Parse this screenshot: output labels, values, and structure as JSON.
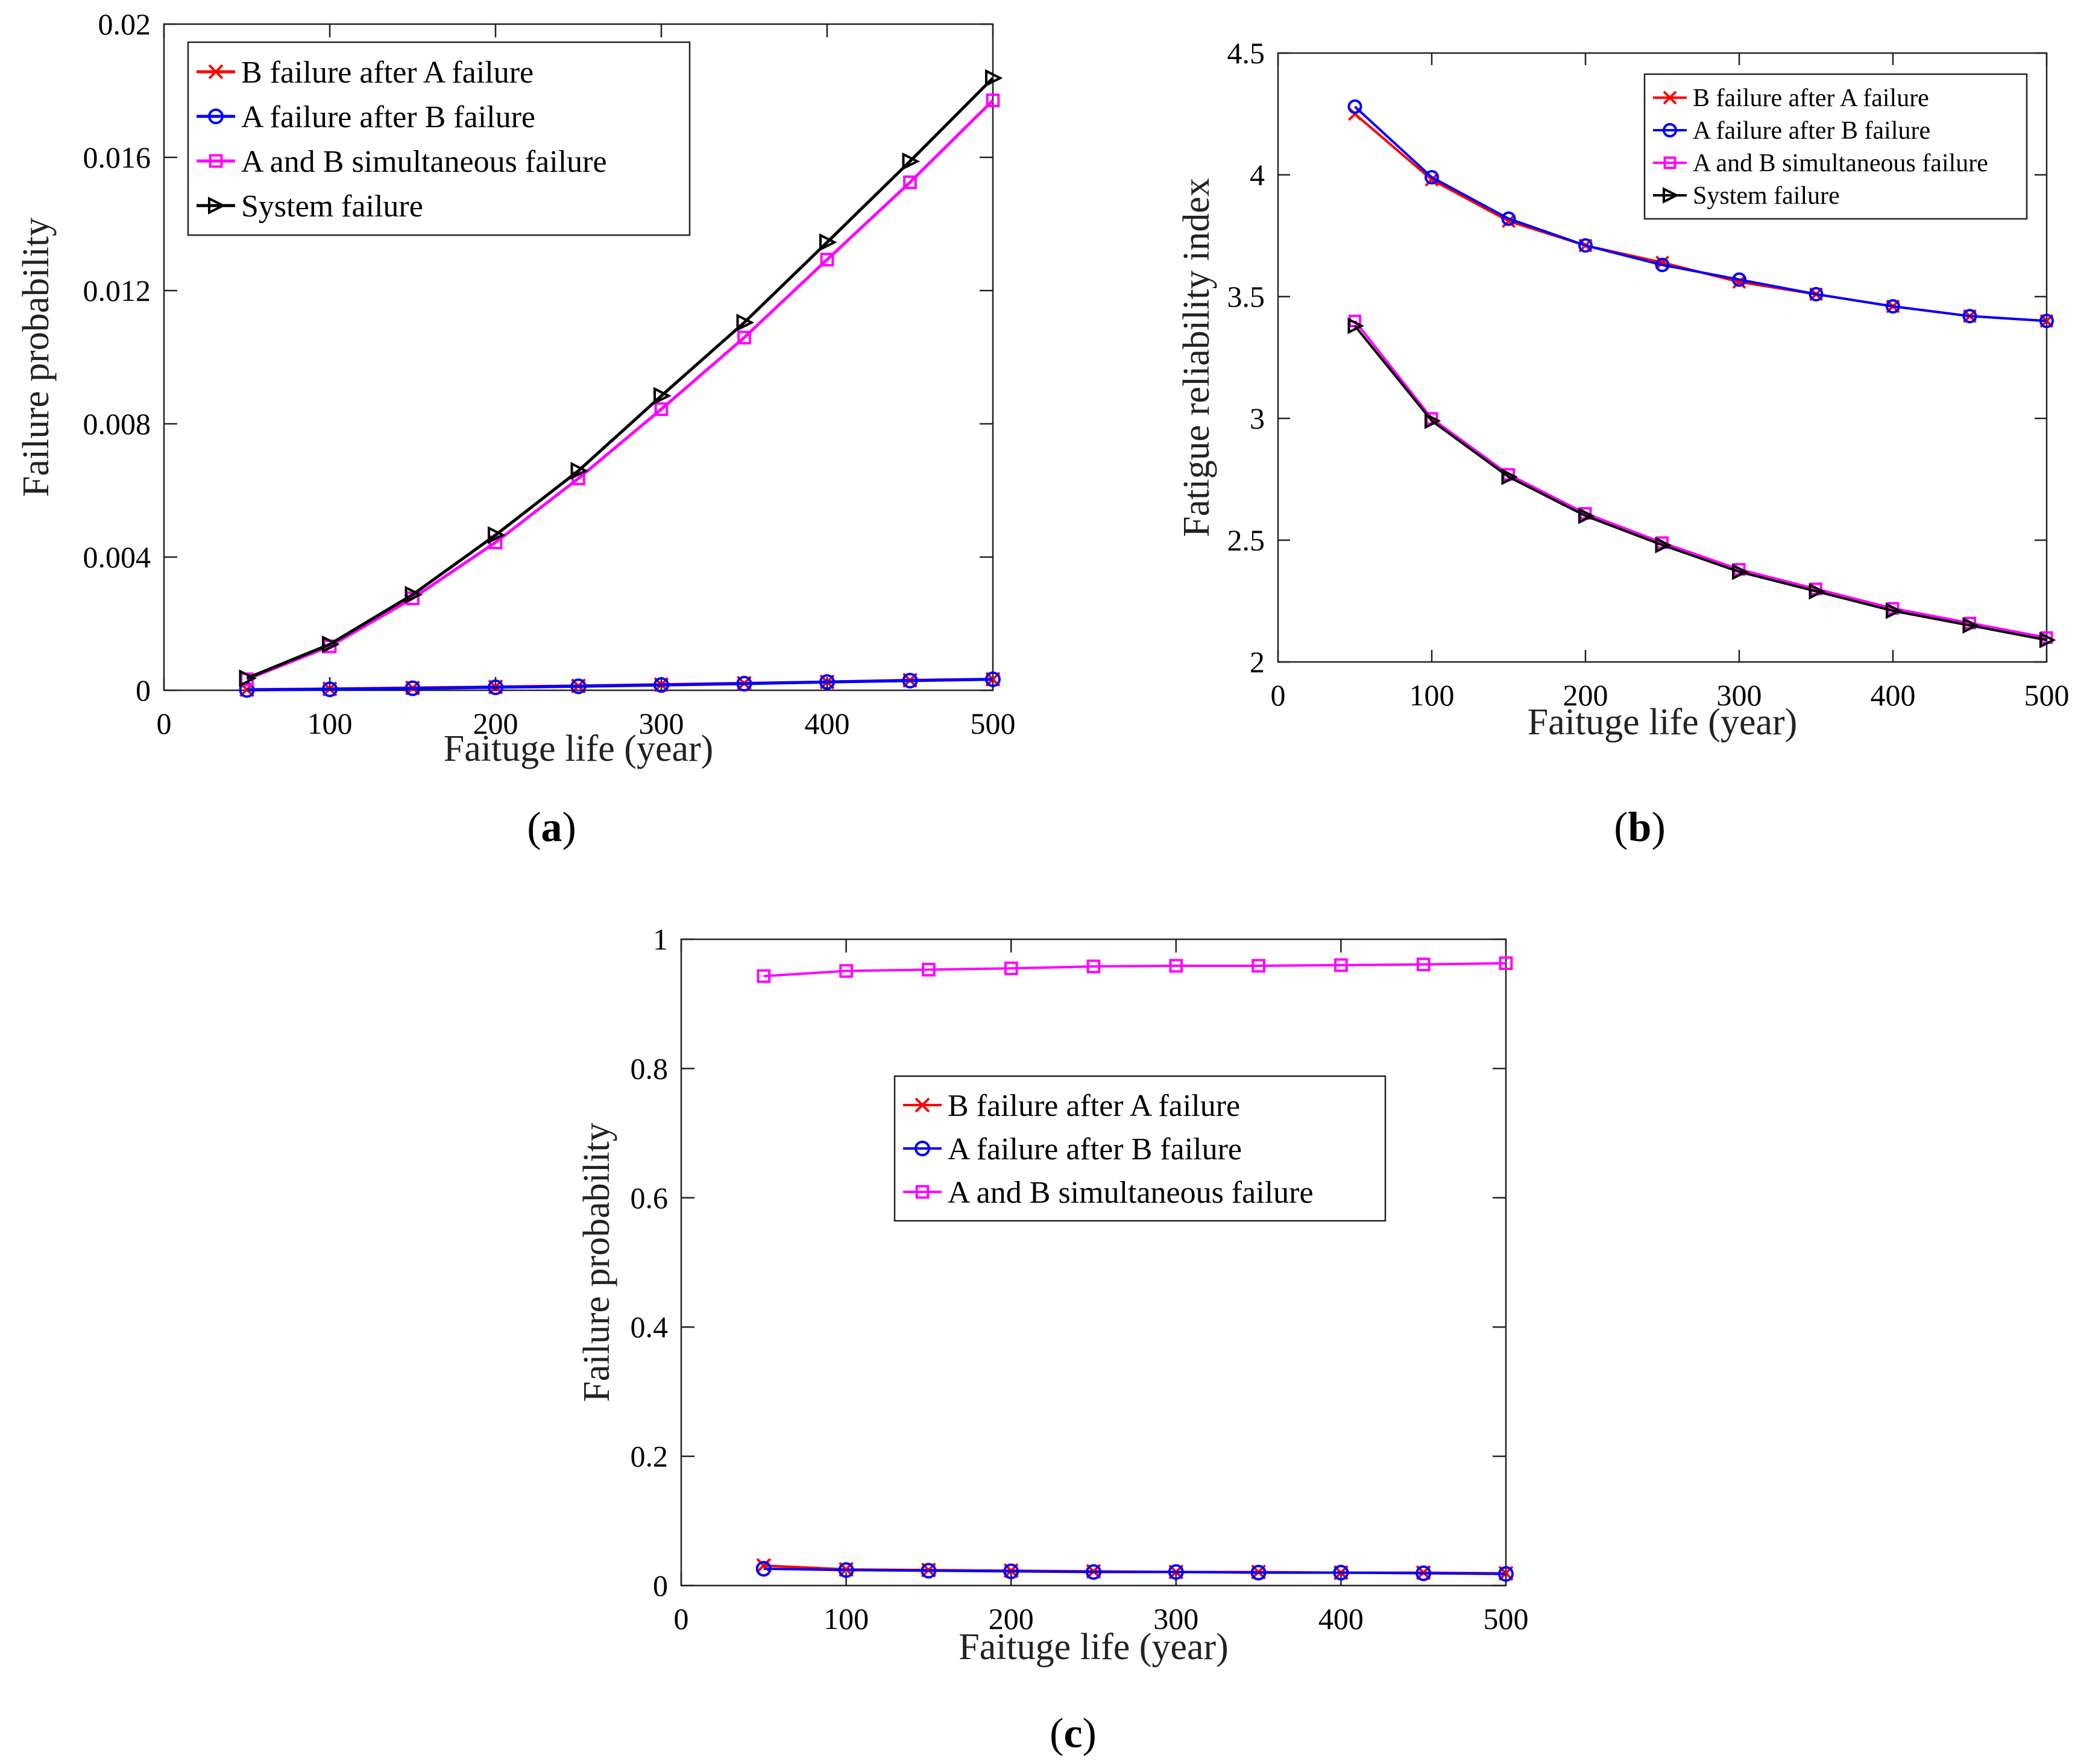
{
  "colors": {
    "red": "#ff0000",
    "blue": "#0000ff",
    "magenta": "#ff00ff",
    "black": "#000000"
  },
  "chart_data": [
    {
      "id": "a",
      "type": "line",
      "caption_open": "(",
      "caption_letter": "a",
      "caption_close": ")",
      "xlabel": "Faituge life (year)",
      "ylabel": "Failure probability",
      "xlim": [
        0,
        500
      ],
      "ylim": [
        0,
        0.02
      ],
      "xticks": [
        "0",
        "100",
        "200",
        "300",
        "400",
        "500"
      ],
      "yticks": [
        "0",
        "0.004",
        "0.008",
        "0.012",
        "0.016",
        "0.02"
      ],
      "x": [
        50,
        100,
        150,
        200,
        250,
        300,
        350,
        400,
        450,
        500
      ],
      "legend_position": "top-left",
      "series": [
        {
          "name": "B failure after A failure",
          "color_key": "red",
          "marker": "x",
          "values": [
            2e-05,
            4e-05,
            7e-05,
            0.0001,
            0.00013,
            0.00017,
            0.00021,
            0.00025,
            0.0003,
            0.00033
          ]
        },
        {
          "name": "A failure after B failure",
          "color_key": "blue",
          "marker": "circle",
          "values": [
            1e-05,
            3e-05,
            6e-05,
            9e-05,
            0.00012,
            0.00016,
            0.0002,
            0.00025,
            0.00029,
            0.00033
          ]
        },
        {
          "name": "A and B simultaneous failure",
          "color_key": "magenta",
          "marker": "square",
          "values": [
            0.00033,
            0.00132,
            0.00276,
            0.00444,
            0.00636,
            0.00844,
            0.01059,
            0.01293,
            0.01525,
            0.01771
          ]
        },
        {
          "name": "System failure",
          "color_key": "black",
          "marker": "triangle-right",
          "values": [
            0.00036,
            0.00138,
            0.00287,
            0.00466,
            0.00659,
            0.00884,
            0.01104,
            0.01345,
            0.01588,
            0.01838
          ]
        }
      ]
    },
    {
      "id": "b",
      "type": "line",
      "caption_open": "(",
      "caption_letter": "b",
      "caption_close": ")",
      "xlabel": "Faituge life (year)",
      "ylabel": "Fatigue reliability index",
      "xlim": [
        0,
        500
      ],
      "ylim": [
        2,
        4.5
      ],
      "xticks": [
        "0",
        "100",
        "200",
        "300",
        "400",
        "500"
      ],
      "yticks": [
        "2",
        "2.5",
        "3",
        "3.5",
        "4",
        "4.5"
      ],
      "x": [
        50,
        100,
        150,
        200,
        250,
        300,
        350,
        400,
        450,
        500
      ],
      "legend_position": "top-right",
      "series": [
        {
          "name": "B failure after A failure",
          "color_key": "red",
          "marker": "x",
          "values": [
            4.25,
            3.98,
            3.81,
            3.71,
            3.64,
            3.56,
            3.51,
            3.46,
            3.42,
            3.4
          ]
        },
        {
          "name": "A failure after B failure",
          "color_key": "blue",
          "marker": "circle",
          "values": [
            4.28,
            3.99,
            3.82,
            3.71,
            3.63,
            3.57,
            3.51,
            3.46,
            3.42,
            3.4
          ]
        },
        {
          "name": "A and B simultaneous failure",
          "color_key": "magenta",
          "marker": "square",
          "values": [
            3.4,
            3.0,
            2.77,
            2.61,
            2.49,
            2.38,
            2.3,
            2.22,
            2.16,
            2.1
          ]
        },
        {
          "name": "System failure",
          "color_key": "black",
          "marker": "triangle-right",
          "values": [
            3.38,
            2.99,
            2.76,
            2.6,
            2.48,
            2.37,
            2.29,
            2.21,
            2.15,
            2.09
          ]
        }
      ]
    },
    {
      "id": "c",
      "type": "line",
      "caption_open": "(",
      "caption_letter": "c",
      "caption_close": ")",
      "xlabel": "Faituge life (year)",
      "ylabel": "Failure probability",
      "xlim": [
        0,
        500
      ],
      "ylim": [
        0,
        1
      ],
      "xticks": [
        "0",
        "100",
        "200",
        "300",
        "400",
        "500"
      ],
      "yticks": [
        "0",
        "0.2",
        "0.4",
        "0.6",
        "0.8",
        "1"
      ],
      "x": [
        50,
        100,
        150,
        200,
        250,
        300,
        350,
        400,
        450,
        500
      ],
      "legend_position": "center-right",
      "series": [
        {
          "name": "B failure after A failure",
          "color_key": "red",
          "marker": "x",
          "values": [
            0.031,
            0.025,
            0.024,
            0.023,
            0.022,
            0.021,
            0.021,
            0.02,
            0.02,
            0.019
          ]
        },
        {
          "name": "A failure after B failure",
          "color_key": "blue",
          "marker": "circle",
          "values": [
            0.026,
            0.024,
            0.023,
            0.022,
            0.021,
            0.021,
            0.02,
            0.02,
            0.019,
            0.018
          ]
        },
        {
          "name": "A and B simultaneous failure",
          "color_key": "magenta",
          "marker": "square",
          "values": [
            0.943,
            0.951,
            0.953,
            0.955,
            0.958,
            0.959,
            0.959,
            0.96,
            0.961,
            0.963
          ]
        }
      ]
    }
  ]
}
